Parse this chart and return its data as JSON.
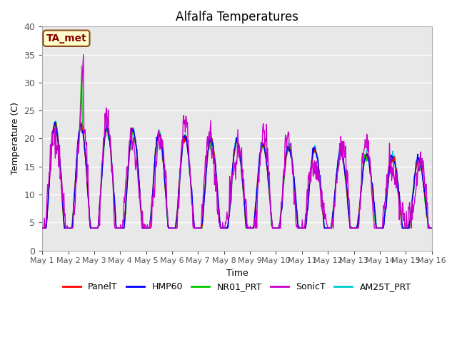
{
  "title": "Alfalfa Temperatures",
  "xlabel": "Time",
  "ylabel": "Temperature (C)",
  "annotation_text": "TA_met",
  "annotation_color": "#8B0000",
  "annotation_bg": "#FFFFCC",
  "annotation_border": "#8B4513",
  "ylim": [
    0,
    40
  ],
  "yticks": [
    0,
    5,
    10,
    15,
    20,
    25,
    30,
    35,
    40
  ],
  "x_labels": [
    "May 1",
    "May 2",
    "May 3",
    "May 4",
    "May 5",
    "May 6",
    "May 7",
    "May 8",
    "May 9",
    "May 10",
    "May 11",
    "May 12",
    "May 13",
    "May 14",
    "May 15",
    "May 16"
  ],
  "series_colors": {
    "PanelT": "#FF0000",
    "HMP60": "#0000FF",
    "NR01_PRT": "#00CC00",
    "SonicT": "#CC00CC",
    "AM25T_PRT": "#00CCCC"
  },
  "background_color": "#E8E8E8",
  "grid_color": "#FFFFFF",
  "n_days": 15,
  "points_per_day": 48
}
